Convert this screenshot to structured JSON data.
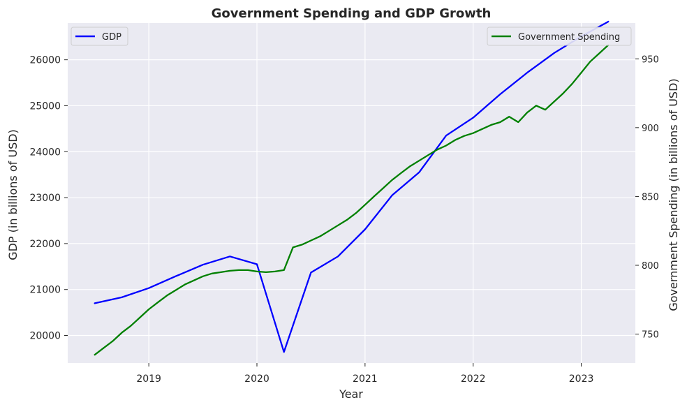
{
  "chart_data": {
    "type": "line",
    "title": "Government Spending and GDP Growth",
    "xlabel": "Year",
    "ylabel_left": "GDP (in billions of USD)",
    "ylabel_right": "Government Spending (in billions of USD)",
    "x_ticks": [
      "2019",
      "2020",
      "2021",
      "2022",
      "2023"
    ],
    "y_left_ticks": [
      20000,
      21000,
      22000,
      23000,
      24000,
      25000,
      26000
    ],
    "y_right_ticks": [
      750,
      800,
      850,
      900,
      950
    ],
    "ylim_left": [
      19400,
      26800
    ],
    "ylim_right": [
      729,
      976
    ],
    "xlim": [
      2018.25,
      2023.5
    ],
    "grid": true,
    "series": [
      {
        "name": "GDP",
        "axis": "left",
        "color": "#0000ff",
        "legend_position": "upper-left",
        "x": [
          2018.5,
          2018.75,
          2019.0,
          2019.25,
          2019.5,
          2019.75,
          2020.0,
          2020.25,
          2020.5,
          2020.75,
          2021.0,
          2021.25,
          2021.5,
          2021.75,
          2022.0,
          2022.25,
          2022.5,
          2022.75,
          2023.0,
          2023.25
        ],
        "values": [
          20700,
          20830,
          21030,
          21290,
          21540,
          21720,
          21550,
          19640,
          21370,
          21720,
          22310,
          23050,
          23550,
          24350,
          24740,
          25250,
          25720,
          26150,
          26510,
          26830
        ]
      },
      {
        "name": "Government Spending",
        "axis": "right",
        "color": "#008000",
        "legend_position": "upper-right",
        "x": [
          2018.5,
          2018.583,
          2018.667,
          2018.75,
          2018.833,
          2018.917,
          2019.0,
          2019.083,
          2019.167,
          2019.25,
          2019.333,
          2019.417,
          2019.5,
          2019.583,
          2019.667,
          2019.75,
          2019.833,
          2019.917,
          2020.0,
          2020.083,
          2020.167,
          2020.25,
          2020.333,
          2020.417,
          2020.5,
          2020.583,
          2020.667,
          2020.75,
          2020.833,
          2020.917,
          2021.0,
          2021.083,
          2021.167,
          2021.25,
          2021.333,
          2021.417,
          2021.5,
          2021.583,
          2021.667,
          2021.75,
          2021.833,
          2021.917,
          2022.0,
          2022.083,
          2022.167,
          2022.25,
          2022.333,
          2022.417,
          2022.5,
          2022.583,
          2022.667,
          2022.75,
          2022.833,
          2022.917,
          2023.0,
          2023.083,
          2023.167,
          2023.25
        ],
        "values": [
          735,
          740,
          745,
          751,
          756,
          762,
          768,
          773,
          778,
          782,
          786,
          789,
          792,
          794,
          795,
          796,
          796.5,
          796.5,
          795.5,
          795,
          795.5,
          796.5,
          813,
          815,
          818,
          821,
          825,
          829,
          833,
          838,
          844,
          850,
          856,
          862,
          867,
          872,
          876,
          880,
          884,
          887,
          891,
          894,
          896,
          899,
          902,
          904,
          908,
          904,
          911,
          916,
          913,
          919,
          925,
          932,
          940,
          948,
          954,
          960
        ]
      }
    ]
  }
}
